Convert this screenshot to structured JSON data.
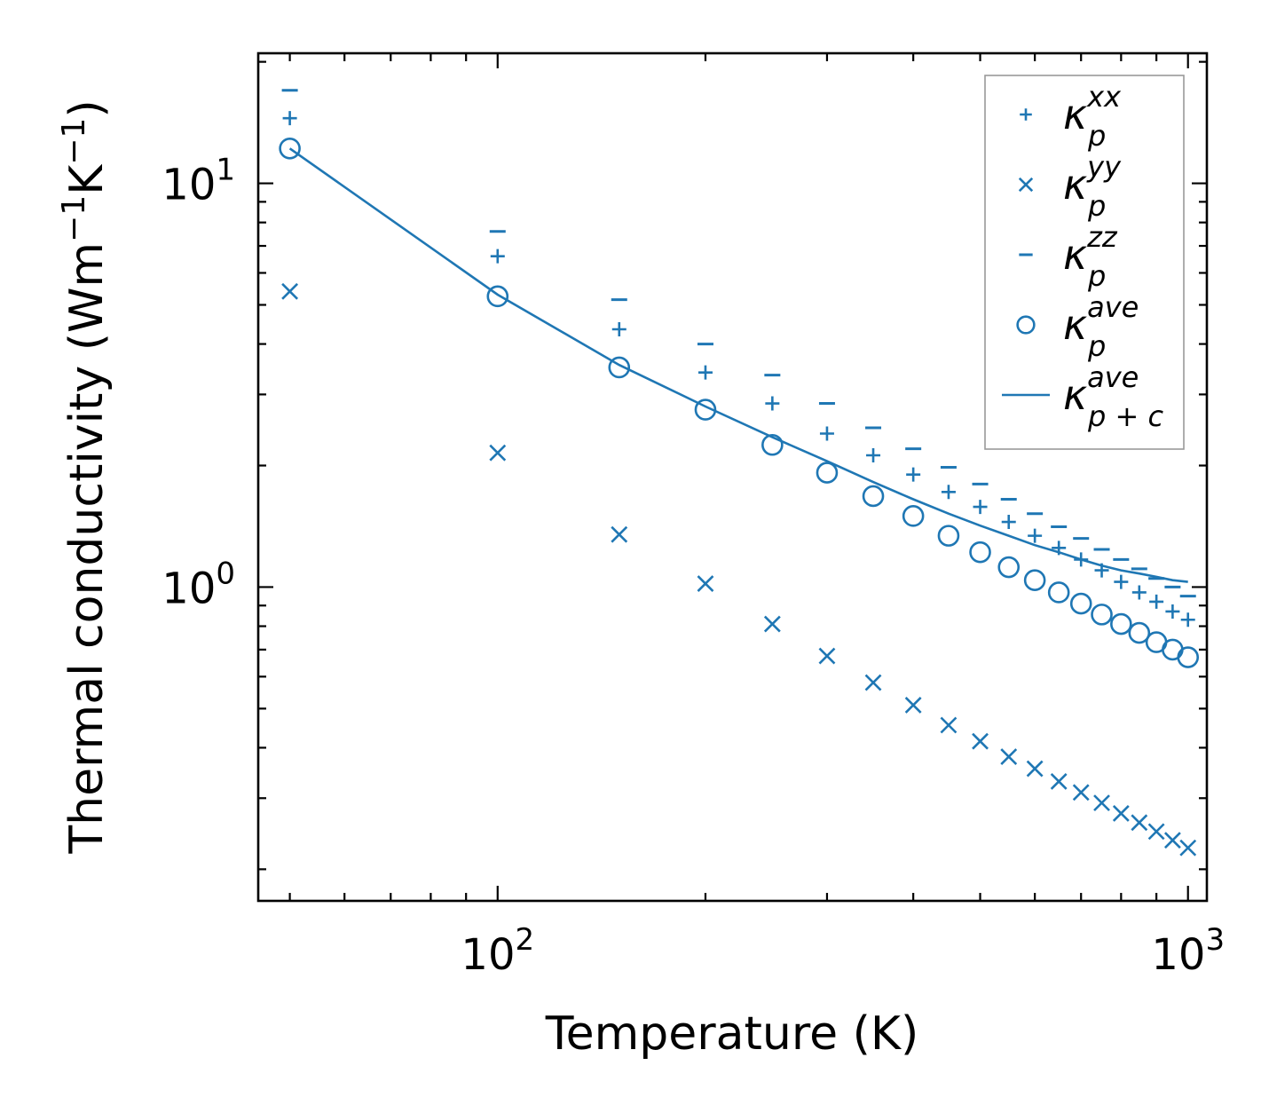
{
  "chart_data": {
    "type": "scatter",
    "title": "",
    "xlabel": "Temperature (K)",
    "ylabel_parts": {
      "main": "Thermal conductivity (Wm",
      "exp1": "−1",
      "mid": "K",
      "exp2": "−1",
      "end": ")"
    },
    "xscale": "log",
    "yscale": "log",
    "xlim": [
      45,
      1065
    ],
    "ylim": [
      0.167,
      21
    ],
    "x_major_ticks": [
      {
        "value": 100,
        "base": "10",
        "exp": "2"
      },
      {
        "value": 1000,
        "base": "10",
        "exp": "3"
      }
    ],
    "y_major_ticks": [
      {
        "value": 1,
        "base": "10",
        "exp": "0"
      },
      {
        "value": 10,
        "base": "10",
        "exp": "1"
      }
    ],
    "x": [
      50,
      100,
      150,
      200,
      250,
      300,
      350,
      400,
      450,
      500,
      550,
      600,
      650,
      700,
      750,
      800,
      850,
      900,
      950,
      1000
    ],
    "series": [
      {
        "name": "kp_xx",
        "marker": "plus",
        "values": [
          14.5,
          6.6,
          4.35,
          3.4,
          2.85,
          2.4,
          2.12,
          1.9,
          1.72,
          1.58,
          1.45,
          1.34,
          1.25,
          1.17,
          1.1,
          1.03,
          0.97,
          0.92,
          0.87,
          0.83
        ]
      },
      {
        "name": "kp_yy",
        "marker": "x",
        "values": [
          5.4,
          2.15,
          1.35,
          1.02,
          0.81,
          0.675,
          0.58,
          0.51,
          0.455,
          0.415,
          0.38,
          0.355,
          0.33,
          0.31,
          0.292,
          0.275,
          0.261,
          0.248,
          0.236,
          0.226
        ]
      },
      {
        "name": "kp_zz",
        "marker": "hline",
        "values": [
          17.0,
          7.6,
          5.15,
          4.0,
          3.35,
          2.85,
          2.48,
          2.2,
          1.98,
          1.8,
          1.65,
          1.52,
          1.41,
          1.32,
          1.24,
          1.17,
          1.11,
          1.05,
          1.0,
          0.95
        ]
      },
      {
        "name": "kp_ave",
        "marker": "circle",
        "values": [
          12.2,
          5.25,
          3.5,
          2.75,
          2.25,
          1.92,
          1.68,
          1.5,
          1.34,
          1.22,
          1.12,
          1.04,
          0.97,
          0.91,
          0.855,
          0.81,
          0.77,
          0.73,
          0.7,
          0.67
        ]
      },
      {
        "name": "kpc_ave",
        "marker": "line",
        "values": [
          12.2,
          5.3,
          3.55,
          2.8,
          2.35,
          2.05,
          1.82,
          1.65,
          1.52,
          1.42,
          1.34,
          1.27,
          1.22,
          1.17,
          1.13,
          1.1,
          1.08,
          1.06,
          1.04,
          1.03
        ]
      }
    ],
    "legend": {
      "placement": "top-right",
      "entries": [
        {
          "marker": "plus",
          "base": "κ",
          "sup": "xx",
          "sub": "p"
        },
        {
          "marker": "x",
          "base": "κ",
          "sup": "yy",
          "sub": "p"
        },
        {
          "marker": "hline",
          "base": "κ",
          "sup": "zz",
          "sub": "p"
        },
        {
          "marker": "circle",
          "base": "κ",
          "sup": "ave",
          "sub": "p"
        },
        {
          "marker": "line",
          "base": "κ",
          "sup": "ave",
          "sub": "p + c"
        }
      ]
    },
    "color": "#1f77b4",
    "grid": false
  }
}
